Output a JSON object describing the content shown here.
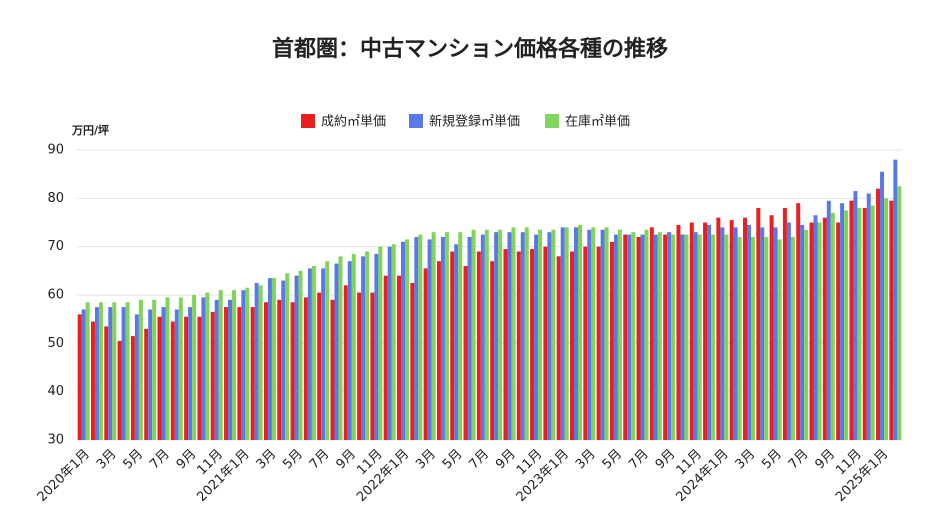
{
  "chart_data": {
    "type": "bar",
    "title": "首都圏：中古マンション価格各種の推移",
    "y_label": "万円/坪",
    "categories": [
      "2020年1月",
      null,
      "3月",
      null,
      "5月",
      null,
      "7月",
      null,
      "9月",
      null,
      "11月",
      null,
      "2021年1月",
      null,
      "3月",
      null,
      "5月",
      null,
      "7月",
      null,
      "9月",
      null,
      "11月",
      null,
      "2022年1月",
      null,
      "3月",
      null,
      "5月",
      null,
      "7月",
      null,
      "9月",
      null,
      "11月",
      null,
      "2023年1月",
      null,
      "3月",
      null,
      "5月",
      null,
      "7月",
      null,
      "9月",
      null,
      "11月",
      null,
      "2024年1月",
      null,
      "3月",
      null,
      "5月",
      null,
      "7月",
      null,
      "9月",
      null,
      "11月",
      null,
      "2025年1月",
      null
    ],
    "series": [
      {
        "name": "成約㎡単価",
        "color": "#e8201f",
        "values": [
          56,
          54.5,
          53.5,
          50.5,
          51.5,
          53,
          55.5,
          54.5,
          55.5,
          55.5,
          56.5,
          57.5,
          57.5,
          57.5,
          58.5,
          59,
          58.5,
          59.5,
          60.5,
          59,
          62,
          60.5,
          60.5,
          64,
          64,
          62.5,
          65.5,
          67,
          69,
          66,
          69,
          67,
          69.5,
          69,
          69.5,
          70,
          68,
          69,
          70,
          70,
          71,
          72.5,
          72,
          74,
          72.5,
          74.5,
          75,
          75,
          76,
          75.5,
          76,
          78,
          76.5,
          78,
          79,
          75,
          76,
          75,
          79.5,
          78,
          82,
          79.5
        ]
      },
      {
        "name": "新規登録㎡単価",
        "color": "#5a78e8",
        "values": [
          57,
          57.5,
          57.5,
          57.5,
          56,
          57,
          57.5,
          57,
          57.5,
          59.5,
          59,
          59,
          61,
          62.5,
          63.5,
          63,
          64,
          65.5,
          65.5,
          66.5,
          67,
          68,
          68.5,
          70,
          71,
          72,
          71.5,
          72,
          70.5,
          72,
          72.5,
          73,
          73,
          73,
          72.5,
          73,
          74,
          74,
          73.5,
          73.5,
          72.5,
          72.5,
          72.5,
          72.5,
          73,
          72.5,
          73,
          74.5,
          74,
          74,
          74.5,
          74,
          74,
          75,
          74.5,
          76.5,
          79.5,
          79,
          81.5,
          81,
          85.5,
          88
        ]
      },
      {
        "name": "在庫㎡単価",
        "color": "#80d45a",
        "values": [
          58.5,
          58.5,
          58.5,
          58.5,
          59,
          59,
          59.5,
          59.5,
          60,
          60.5,
          61,
          61,
          61.5,
          62,
          63.5,
          64.5,
          65,
          66,
          67,
          68,
          68.5,
          69,
          70,
          70.5,
          71.5,
          72.5,
          73,
          73,
          73,
          73.5,
          73.5,
          73.5,
          74,
          74,
          73.5,
          73.5,
          74,
          74.5,
          74,
          74,
          73.5,
          73,
          73.5,
          73,
          72.5,
          72.5,
          72.5,
          72.5,
          72.5,
          72,
          72,
          72,
          71.5,
          72,
          73.5,
          75,
          77,
          77.5,
          78,
          78.5,
          80,
          82.5
        ]
      }
    ],
    "ylim": [
      30,
      90
    ],
    "yticks": [
      30,
      40,
      50,
      60,
      70,
      80,
      90
    ],
    "grid": true,
    "legend": "top"
  }
}
